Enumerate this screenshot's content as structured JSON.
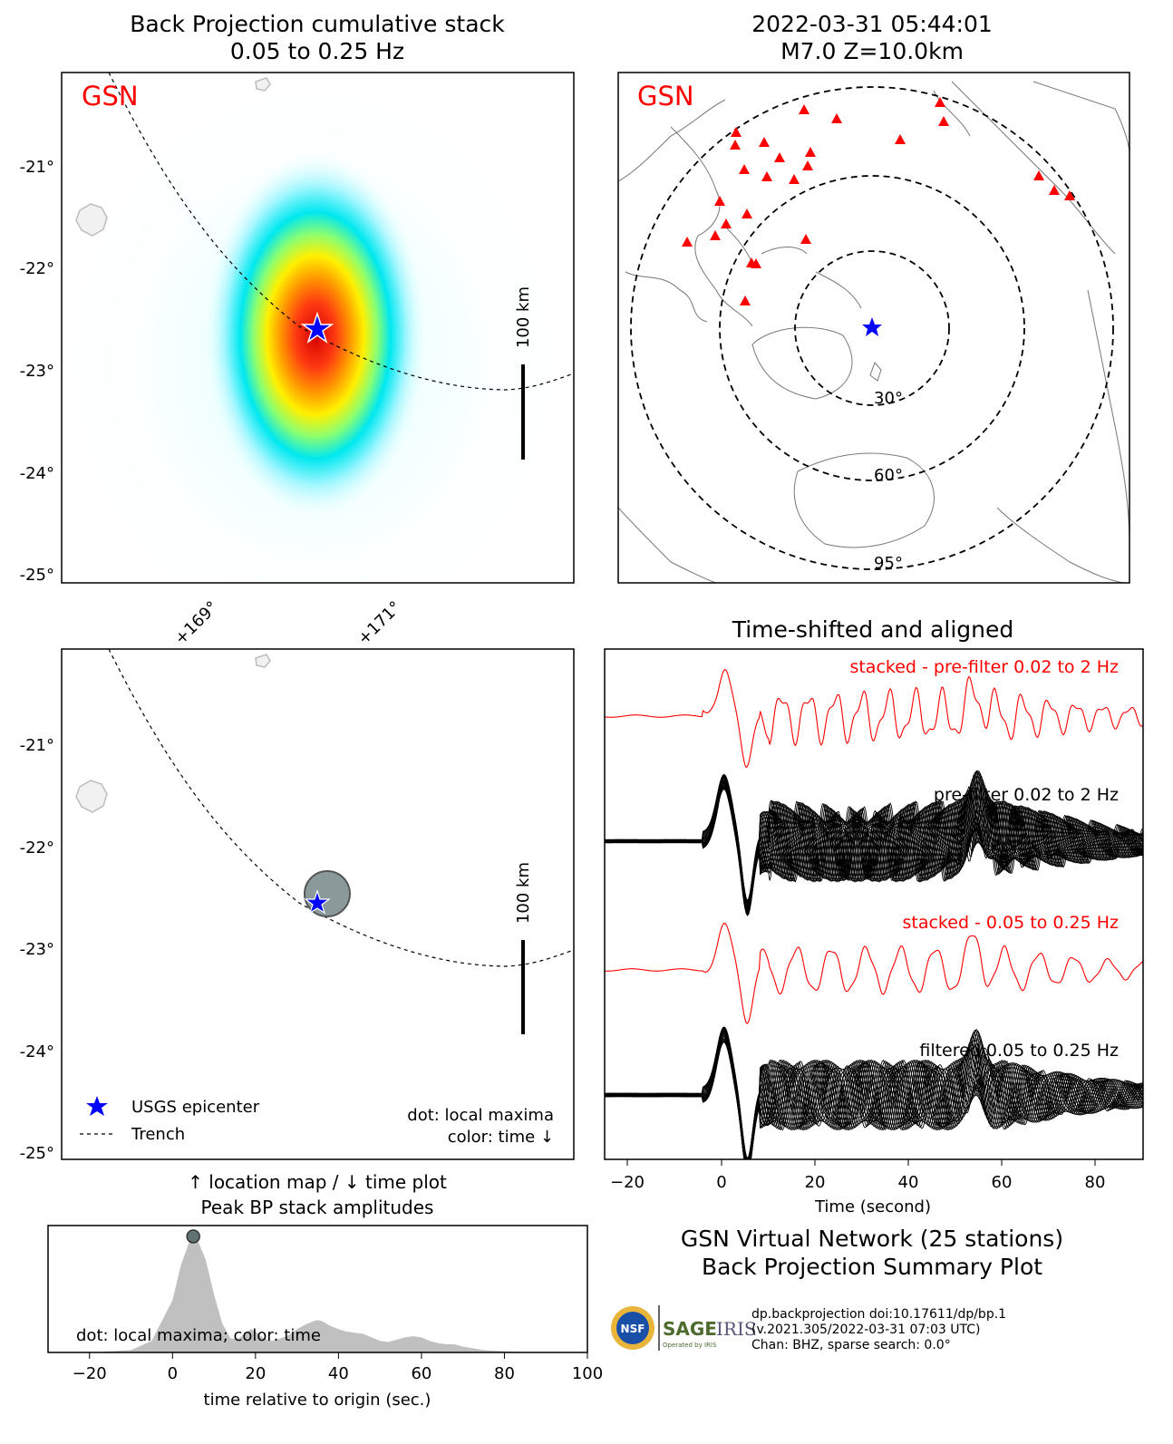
{
  "bp_map": {
    "title_line1": "Back Projection cumulative stack",
    "title_line2": "0.05 to 0.25 Hz",
    "network_label": "GSN",
    "scale_label": "100 km",
    "y_ticks": [
      "-21°",
      "-22°",
      "-23°",
      "-24°",
      "-25°"
    ],
    "x_ticks": [
      "+169°",
      "+171°"
    ]
  },
  "station_map": {
    "title_line1": "2022-03-31 05:44:01",
    "title_line2": "M7.0 Z=10.0km",
    "network_label": "GSN",
    "distance_labels": [
      "30°",
      "60°",
      "95°"
    ]
  },
  "location_map": {
    "scale_label": "100 km",
    "y_ticks": [
      "-21°",
      "-22°",
      "-23°",
      "-24°",
      "-25°"
    ],
    "legend": {
      "epicenter": "USGS epicenter",
      "trench": "Trench"
    },
    "note_line1": "dot: local maxima",
    "note_line2": "color: time ↓",
    "caption_line1": "↑ location map / ↓ time plot",
    "caption_line2": "Peak BP stack amplitudes"
  },
  "waveforms": {
    "title": "Time-shifted and aligned",
    "labels": [
      "stacked - pre-filter 0.02 to 2 Hz",
      "pre-filter 0.02 to 2 Hz",
      "stacked - 0.05 to 0.25 Hz",
      "filtered 0.05 to 0.25 Hz"
    ],
    "x_ticks": [
      "−20",
      "0",
      "20",
      "40",
      "60",
      "80"
    ],
    "xlabel": "Time (second)",
    "colors": {
      "stacked": "#ff0000",
      "traces": "#000000"
    }
  },
  "summary": {
    "line1": "GSN Virtual Network (25 stations)",
    "line2": "Back Projection Summary Plot",
    "logo_text": "SAGE",
    "logo_text2": "IRIS",
    "logo_text3": "Operated by IRIS",
    "nsf_text": "NSF",
    "meta_line1": "dp.backprojection doi:10.17611/dp/bp.1",
    "meta_line2": "(v.2021.305/2022-03-31 07:03 UTC)",
    "meta_line3": "Chan: BHZ, sparse search: 0.0°"
  },
  "chart_data": [
    {
      "type": "area",
      "title": "",
      "xlabel": "time relative to origin (sec.)",
      "ylabel": "",
      "xlim": [
        -30,
        100
      ],
      "x_ticks": [
        -20,
        0,
        20,
        40,
        60,
        80,
        100
      ],
      "note": "dot: local maxima; color: time",
      "x": [
        -30,
        -20,
        -10,
        -5,
        0,
        2,
        4,
        5,
        6,
        8,
        10,
        12,
        14,
        16,
        18,
        19,
        20,
        22,
        24,
        26,
        28,
        30,
        32,
        34,
        35,
        36,
        38,
        40,
        42,
        44,
        46,
        48,
        50,
        52,
        54,
        56,
        58,
        60,
        62,
        64,
        66,
        68,
        70,
        75,
        80,
        90,
        100
      ],
      "values": [
        0.0,
        0.0,
        0.02,
        0.1,
        0.45,
        0.75,
        0.95,
        1.0,
        0.97,
        0.8,
        0.5,
        0.25,
        0.12,
        0.12,
        0.18,
        0.2,
        0.18,
        0.12,
        0.1,
        0.12,
        0.15,
        0.2,
        0.24,
        0.27,
        0.28,
        0.27,
        0.23,
        0.2,
        0.18,
        0.17,
        0.16,
        0.13,
        0.1,
        0.09,
        0.11,
        0.13,
        0.14,
        0.13,
        0.1,
        0.08,
        0.07,
        0.07,
        0.05,
        0.02,
        0.01,
        0.0,
        0.0
      ],
      "peak": {
        "x": 5,
        "value": 1.0
      }
    },
    {
      "type": "line",
      "title": "Time-shifted and aligned",
      "xlabel": "Time (second)",
      "ylabel": "",
      "xlim": [
        -25,
        90
      ],
      "series": [
        {
          "name": "stacked - pre-filter 0.02 to 2 Hz",
          "x": [
            -25,
            0,
            5,
            10,
            15,
            20,
            25,
            30,
            35,
            40,
            45,
            50,
            55,
            60,
            65,
            70,
            75,
            80,
            85,
            90
          ],
          "values": [
            0,
            0.8,
            -1.2,
            0.4,
            -0.6,
            0.6,
            -0.4,
            0.5,
            0.2,
            -0.3,
            0.3,
            -0.3,
            0.6,
            -0.2,
            0.2,
            0.4,
            0.1,
            0,
            0,
            0
          ]
        },
        {
          "name": "stacked - 0.05 to 0.25 Hz",
          "x": [
            -25,
            0,
            5,
            10,
            15,
            20,
            25,
            30,
            35,
            40,
            45,
            50,
            55,
            60,
            65,
            70,
            75,
            80,
            85,
            90
          ],
          "values": [
            0,
            0.9,
            -1.2,
            0.4,
            -0.5,
            0.5,
            -0.4,
            0.4,
            0.3,
            -0.3,
            0.2,
            -0.3,
            0.7,
            -0.2,
            0.2,
            0.4,
            -0.1,
            0.1,
            0,
            0
          ]
        }
      ]
    }
  ]
}
